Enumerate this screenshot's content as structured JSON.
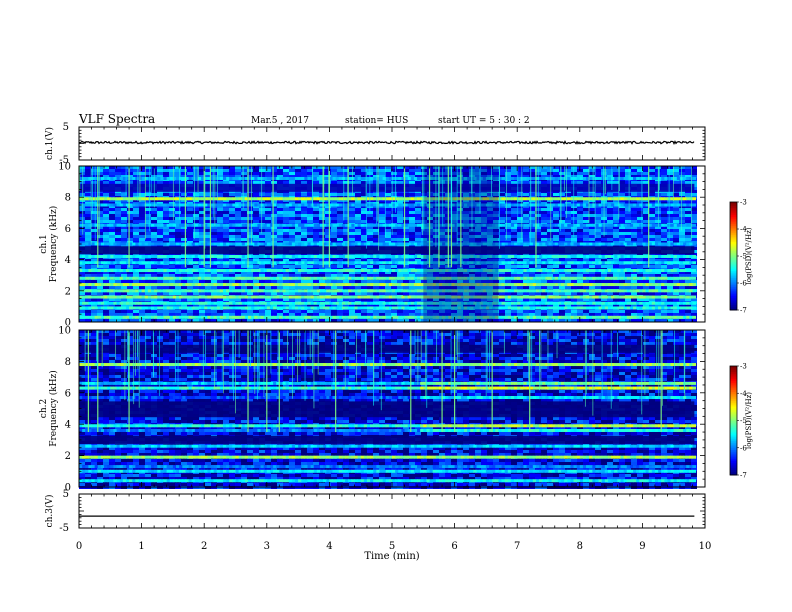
{
  "header": {
    "title": "VLF Spectra",
    "date": "Mar.5 , 2017",
    "station": "station= HUS",
    "start_ut": "start UT = 5 : 30 : 2"
  },
  "colorbar_label": "log(PSD)(V²/Hz)",
  "chart_data": [
    {
      "type": "line",
      "name_label": "ch.1(V)",
      "ylim": [
        -5,
        5
      ],
      "yticks": [
        5,
        -5
      ],
      "x": [
        0,
        9.83
      ],
      "y": [
        0.3,
        0.3
      ],
      "noise_amplitude": 0.35,
      "xlim": [
        0,
        10
      ],
      "color": "#000000"
    },
    {
      "type": "heatmap",
      "ylabel": "ch.1 Frequency (kHz)",
      "xlim": [
        0,
        10
      ],
      "data_xmax": 9.83,
      "ylim": [
        0,
        10
      ],
      "yticks": [
        0,
        2,
        4,
        6,
        8,
        10
      ],
      "colorbar": {
        "range": [
          -7,
          -3
        ],
        "ticks": [
          -3,
          -4,
          -5,
          -6,
          -7
        ],
        "colormap": "jet"
      },
      "background_log_psd": -6.2,
      "bands": [
        {
          "freq": 0.3,
          "log_psd": -5.2
        },
        {
          "freq": 0.9,
          "log_psd": -5.4
        },
        {
          "freq": 1.2,
          "log_psd": -5.4
        },
        {
          "freq": 1.6,
          "log_psd": -5.0
        },
        {
          "freq": 2.0,
          "log_psd": -5.2
        },
        {
          "freq": 2.4,
          "log_psd": -4.9
        },
        {
          "freq": 2.8,
          "log_psd": -5.2
        },
        {
          "freq": 3.3,
          "log_psd": -5.4
        },
        {
          "freq": 3.8,
          "log_psd": -5.6
        },
        {
          "freq": 4.2,
          "log_psd": -5.5
        },
        {
          "freq": 5.0,
          "log_psd": -5.8
        },
        {
          "freq": 6.2,
          "log_psd": -5.8
        },
        {
          "freq": 7.5,
          "log_psd": -5.8
        },
        {
          "freq": 7.9,
          "log_psd": -4.8
        },
        {
          "freq": 9.2,
          "log_psd": -5.8
        }
      ],
      "quiet_bands": [
        {
          "freq": 4.6,
          "log_psd": -7
        },
        {
          "freq": 8.6,
          "log_psd": -6.8
        }
      ],
      "spherics_minutes": [
        0.3,
        0.8,
        1.7,
        2.0,
        2.1,
        2.7,
        3.1,
        3.9,
        4.0,
        4.3,
        5.2,
        5.6,
        5.75,
        5.9,
        5.95,
        6.1,
        7.3,
        9.1
      ],
      "depletion_minutes": [
        5.5,
        6.7
      ]
    },
    {
      "type": "heatmap",
      "ylabel": "ch.2 Frequency (kHz)",
      "xlim": [
        0,
        10
      ],
      "data_xmax": 9.83,
      "ylim": [
        0,
        10
      ],
      "yticks": [
        0,
        2,
        4,
        6,
        8,
        10
      ],
      "colorbar": {
        "range": [
          -7,
          -3
        ],
        "ticks": [
          -3,
          -4,
          -5,
          -6,
          -7
        ],
        "colormap": "jet"
      },
      "background_log_psd": -6.6,
      "bands": [
        {
          "freq": 0.4,
          "log_psd": -5.5
        },
        {
          "freq": 1.0,
          "log_psd": -5.6
        },
        {
          "freq": 1.3,
          "log_psd": -6.0
        },
        {
          "freq": 1.9,
          "log_psd": -4.9
        },
        {
          "freq": 2.6,
          "log_psd": -5.7
        },
        {
          "freq": 3.6,
          "log_psd": -5.4
        },
        {
          "freq": 3.9,
          "log_psd": -4.8
        },
        {
          "freq": 5.7,
          "log_psd": -5.6
        },
        {
          "freq": 6.3,
          "log_psd": -4.7
        },
        {
          "freq": 6.6,
          "log_psd": -5.1
        },
        {
          "freq": 7.8,
          "log_psd": -4.9
        }
      ],
      "quiet_bands": [
        {
          "freq": 3.0,
          "log_psd": -7
        },
        {
          "freq": 4.7,
          "log_psd": -7
        },
        {
          "freq": 5.2,
          "log_psd": -7
        },
        {
          "freq": 8.8,
          "log_psd": -7
        }
      ],
      "spherics_minutes": [
        0.15,
        0.3,
        0.8,
        2.7,
        3.0,
        3.2,
        4.1,
        5.3,
        5.8,
        6.0,
        6.6,
        7.2,
        9.3
      ],
      "bright_after_minute": 5.4
    },
    {
      "type": "line",
      "name_label": "ch.3(V)",
      "ylim": [
        -5,
        5
      ],
      "yticks": [
        5,
        -5
      ],
      "x": [
        0,
        9.83
      ],
      "y": [
        -1.5,
        -1.5
      ],
      "noise_amplitude": 0,
      "xlim": [
        0,
        10
      ],
      "xlabel": "Time (min)",
      "xticks": [
        0,
        1,
        2,
        3,
        4,
        5,
        6,
        7,
        8,
        9,
        10
      ],
      "color": "#000000"
    }
  ]
}
